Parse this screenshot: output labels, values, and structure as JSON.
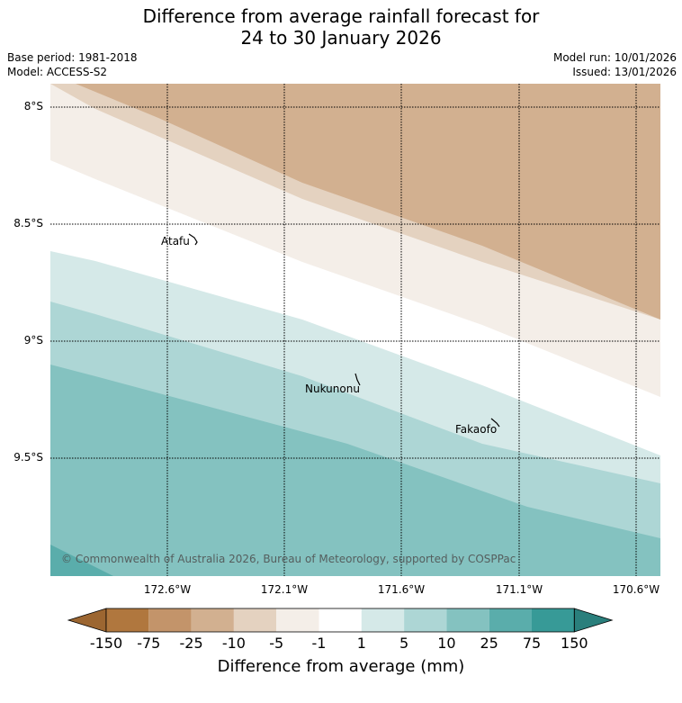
{
  "title": {
    "line1": "Difference from average rainfall forecast for",
    "line2": "24 to 30 January 2026"
  },
  "meta": {
    "base_period": "Base period: 1981-2018",
    "model": "Model: ACCESS-S2",
    "model_run": "Model run: 10/01/2026",
    "issued": "Issued: 13/01/2026"
  },
  "map": {
    "lat_labels": [
      "8°S",
      "8.5°S",
      "9°S",
      "9.5°S"
    ],
    "lon_labels": [
      "172.6°W",
      "172.1°W",
      "171.6°W",
      "171.1°W",
      "170.6°W"
    ],
    "places": [
      {
        "name": "Atafu"
      },
      {
        "name": "Nukunonu"
      },
      {
        "name": "Fakaofo"
      }
    ],
    "copyright": "© Commonwealth of Australia 2026, Bureau of Meteorology, supported by COSPPac"
  },
  "legend": {
    "title": "Difference from average (mm)",
    "ticks": [
      "-150",
      "-75",
      "-25",
      "-10",
      "-5",
      "-1",
      "1",
      "5",
      "10",
      "25",
      "75",
      "150"
    ],
    "colors": [
      "#9c6631",
      "#b0773e",
      "#c3946a",
      "#d2b090",
      "#e4d2c0",
      "#f4eee8",
      "#ffffff",
      "#d5e9e8",
      "#add6d5",
      "#84c2c0",
      "#5aadab",
      "#379a97",
      "#2a7f7c"
    ]
  }
}
